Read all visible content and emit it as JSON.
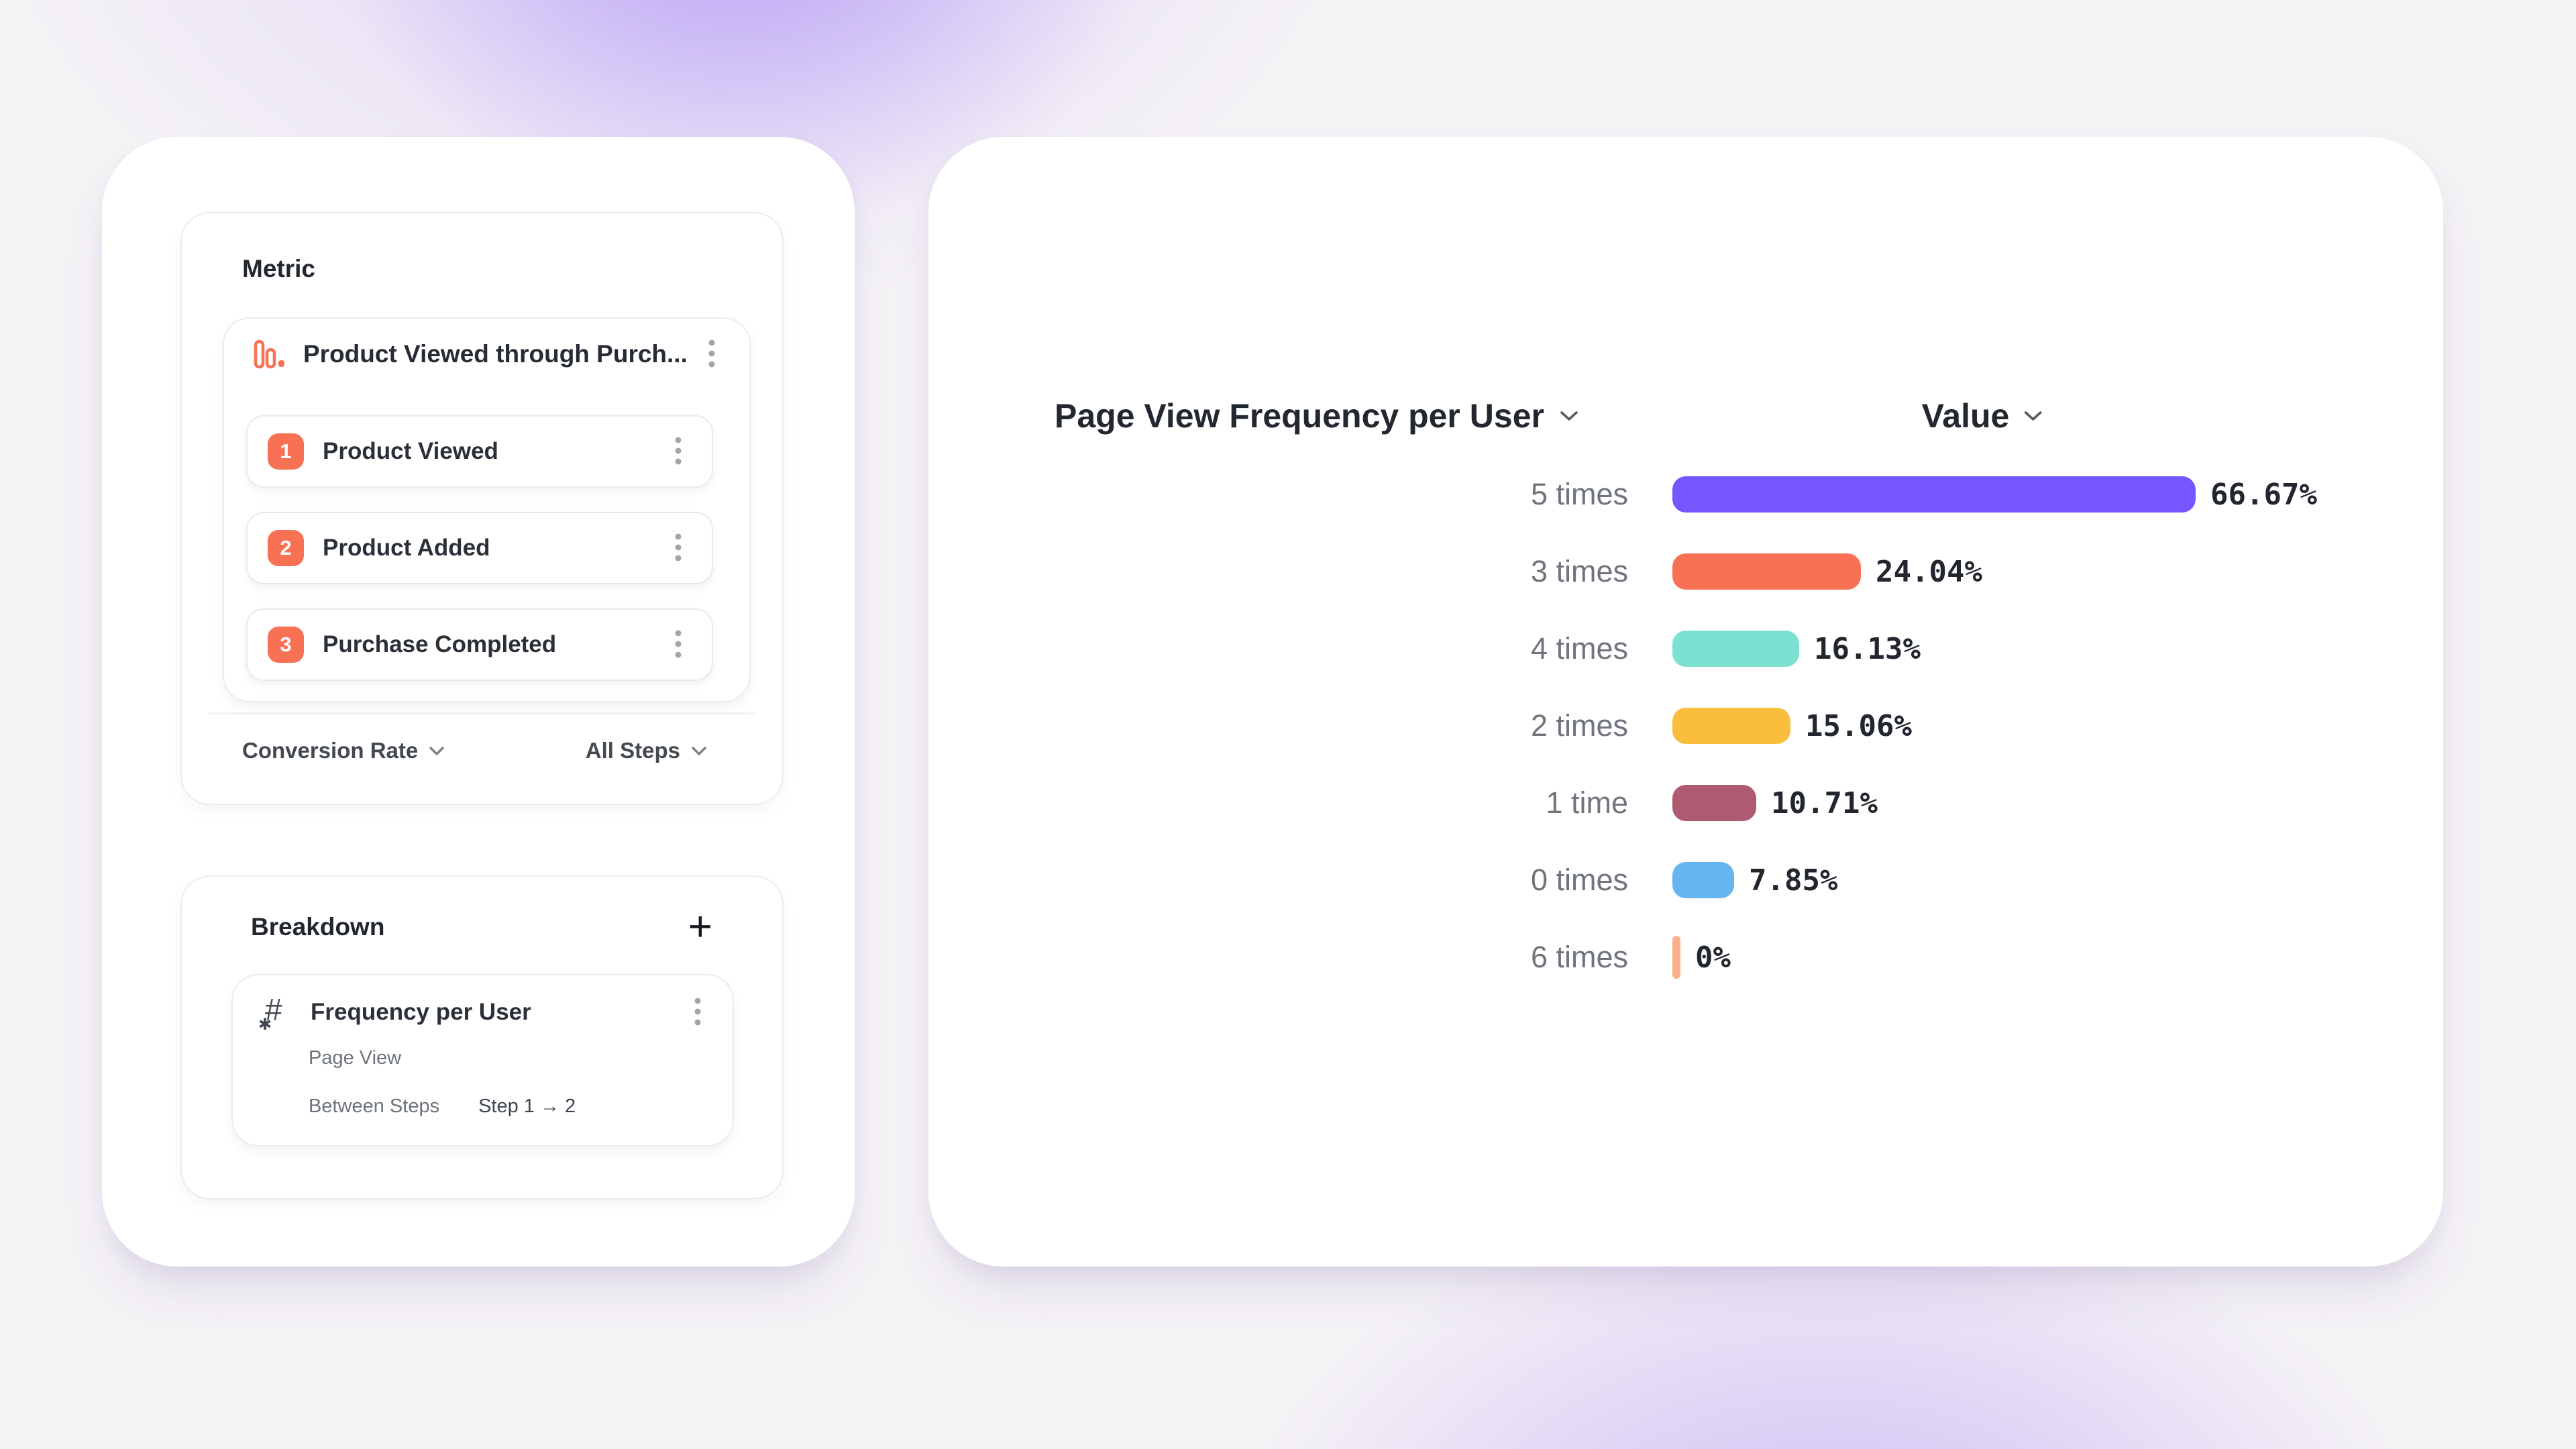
{
  "colors": {
    "accent_orange": "#F97155",
    "border": "#ECECF0",
    "text_dark": "#22262E",
    "text_grey": "#6E737C",
    "bg_glow_purple": "#9A7AF0"
  },
  "metric_panel": {
    "title": "Metric",
    "funnel": {
      "title": "Product Viewed through Purch...",
      "icon": "funnel-bars-icon",
      "steps": [
        {
          "num": "1",
          "label": "Product Viewed"
        },
        {
          "num": "2",
          "label": "Product Added"
        },
        {
          "num": "3",
          "label": "Purchase Completed"
        }
      ]
    },
    "footer": {
      "left_dropdown": "Conversion Rate",
      "right_dropdown": "All Steps"
    }
  },
  "breakdown_panel": {
    "title": "Breakdown",
    "add_label": "+",
    "item": {
      "icon": "hash-asterisk-icon",
      "title": "Frequency per User",
      "event": "Page View",
      "between_label": "Between Steps",
      "between_value": "Step 1 → 2"
    }
  },
  "chart": {
    "title": "Page View Frequency per User",
    "value_header": "Value",
    "rows": [
      {
        "label": "5 times",
        "pct": 66.67,
        "display": "66.67%",
        "color": "#7656FE"
      },
      {
        "label": "3 times",
        "pct": 24.04,
        "display": "24.04%",
        "color": "#F97155"
      },
      {
        "label": "4 times",
        "pct": 16.13,
        "display": "16.13%",
        "color": "#7DE1D2"
      },
      {
        "label": "2 times",
        "pct": 15.06,
        "display": "15.06%",
        "color": "#F9BE3E"
      },
      {
        "label": "1 time",
        "pct": 10.71,
        "display": "10.71%",
        "color": "#AE5A70"
      },
      {
        "label": "0 times",
        "pct": 7.85,
        "display": "7.85%",
        "color": "#66B5F1"
      },
      {
        "label": "6 times",
        "pct": 0,
        "display": "0%",
        "color": "#FBB28C"
      }
    ]
  },
  "chart_data": {
    "type": "bar",
    "orientation": "horizontal",
    "title": "Page View Frequency per User",
    "value_column": "Value",
    "categories": [
      "5 times",
      "3 times",
      "4 times",
      "2 times",
      "1 time",
      "0 times",
      "6 times"
    ],
    "values": [
      66.67,
      24.04,
      16.13,
      15.06,
      10.71,
      7.85,
      0
    ],
    "unit": "%",
    "xlim": [
      0,
      100
    ],
    "grid": false,
    "legend": false
  }
}
